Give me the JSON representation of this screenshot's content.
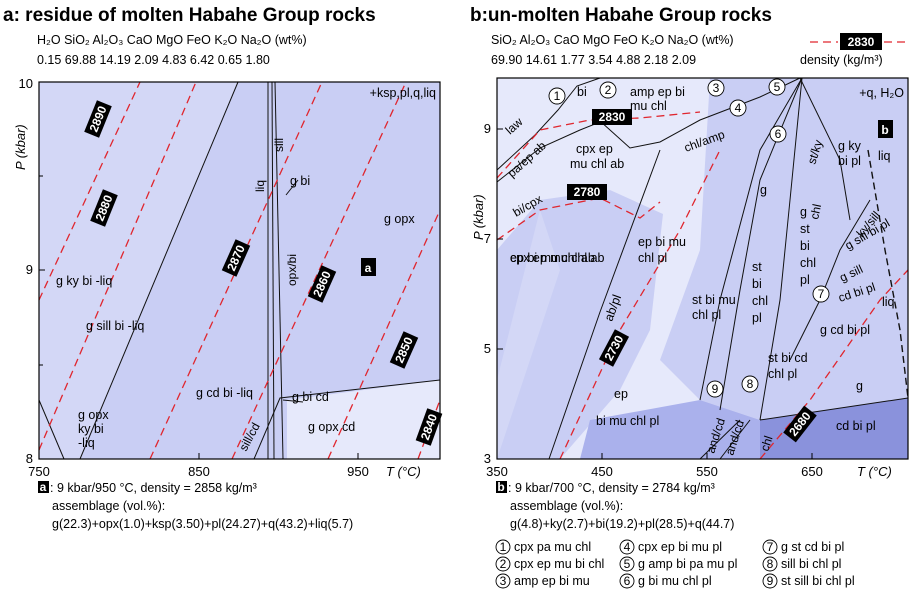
{
  "panel_a": {
    "title": "a: residue of molten Habahe Group rocks",
    "oxide_header": "H₂O SiO₂ Al₂O₃ CaO MgO FeO K₂O Na₂O (wt%)",
    "oxide_values": "0.15 69.88 14.19 2.09 4.83 6.42 0.65 1.80",
    "y_axis_label": "P (kbar)",
    "x_axis_label": "T (°C)",
    "y_ticks": [
      "10",
      "9",
      "8"
    ],
    "x_ticks": [
      "750",
      "850",
      "950"
    ],
    "excess_phases": "+ksp,pl,q,liq",
    "fields": [
      "g ky bi -liq",
      "g sill bi -liq",
      "g cd bi -liq",
      "g bi cd",
      "g opx",
      "g opx cd",
      "g bi",
      "g opx ky bi -liq"
    ],
    "boundary_labels": [
      "liq",
      "sill",
      "opx/bi",
      "sill/cd"
    ],
    "isopleths": [
      "2890",
      "2880",
      "2870",
      "2860",
      "2850",
      "2840"
    ],
    "point_marker": "a",
    "caption_line1": ": 9 kbar/950 °C, density = 2858 kg/m³",
    "caption_line2": "assemblage (vol.%):",
    "caption_line3": "g(22.3)+opx(1.0)+ksp(3.50)+pl(24.27)+q(43.2)+liq(5.7)"
  },
  "panel_b": {
    "title": "b:un-molten Habahe Group rocks",
    "oxide_header": "SiO₂ Al₂O₃ CaO MgO FeO K₂O Na₂O (wt%)",
    "oxide_values": "69.90 14.61 1.77 3.54 4.88 2.18 2.09",
    "legend_value": "2830",
    "legend_text": "density (kg/m³)",
    "y_axis_label": "P (kbar)",
    "x_axis_label": "T (°C)",
    "y_ticks": [
      "9",
      "7",
      "5",
      "3"
    ],
    "x_ticks": [
      "350",
      "450",
      "550",
      "650"
    ],
    "excess_phases": "+q, H₂O",
    "fields": [
      "bi",
      "amp ep bi mu chl",
      "cpx ep mu chl ab",
      "ep bi mu chl ab",
      "ep bi mu chl pl",
      "bi mu chl pl",
      "st bi mu chl pl",
      "st bi chl pl",
      "g st bi chl pl",
      "g ky bi pl",
      "g sill bi pl",
      "g sill",
      "cd bi pl",
      "g cd bi pl",
      "st bi cd chl pl",
      "cd bi pl",
      "g",
      "ep"
    ],
    "boundary_labels": [
      "law",
      "pa/ep ab",
      "bi/cpx",
      "chl/amp",
      "ab/pl",
      "st/ky",
      "chl",
      "ky/sill",
      "liq",
      "and/cd",
      "and/cd",
      "chl",
      "g"
    ],
    "isopleths": [
      "2830",
      "2780",
      "2730",
      "2680"
    ],
    "point_marker": "b",
    "caption_line1": ": 9 kbar/700 °C, density = 2784 kg/m³",
    "caption_line2": "assemblage (vol.%):",
    "caption_line3": "g(4.8)+ky(2.7)+bi(19.2)+pl(28.5)+q(44.7)",
    "key": [
      {
        "n": "1",
        "text": "cpx pa mu chl"
      },
      {
        "n": "2",
        "text": "cpx ep mu bi chl"
      },
      {
        "n": "3",
        "text": "amp ep bi mu"
      },
      {
        "n": "4",
        "text": "cpx ep bi mu pl"
      },
      {
        "n": "5",
        "text": "g amp bi pa mu pl"
      },
      {
        "n": "6",
        "text": "g bi mu chl pl"
      },
      {
        "n": "7",
        "text": "g st cd bi pl"
      },
      {
        "n": "8",
        "text": "sill bi chl pl"
      },
      {
        "n": "9",
        "text": "st sill bi chl pl"
      }
    ]
  },
  "colors": {
    "field_light": "#e6e9fb",
    "field_mid": "#c9cef4",
    "field_dark": "#aab1ec",
    "field_darkest": "#8a92dc",
    "isopleth": "#e0262e"
  }
}
